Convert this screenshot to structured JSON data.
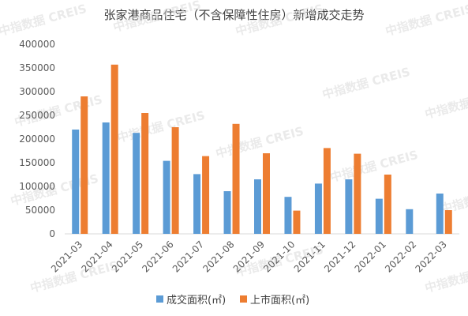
{
  "chart_data": {
    "type": "bar",
    "title": "张家港商品住宅（不含保障性住房）新增成交走势",
    "categories": [
      "2021-03",
      "2021-04",
      "2021-05",
      "2021-06",
      "2021-07",
      "2021-08",
      "2021-09",
      "2021-10",
      "2021-11",
      "2021-12",
      "2022-01",
      "2022-02",
      "2022-03"
    ],
    "series": [
      {
        "name": "成交面积(㎡)",
        "color": "#5b9bd5",
        "values": [
          220000,
          235000,
          213000,
          154000,
          126000,
          90000,
          115000,
          78000,
          106000,
          115000,
          74000,
          52000,
          85000
        ]
      },
      {
        "name": "上市面积(㎡)",
        "color": "#ed7d31",
        "values": [
          290000,
          357000,
          255000,
          225000,
          164000,
          232000,
          170000,
          49000,
          181000,
          169000,
          125000,
          0,
          50000
        ]
      }
    ],
    "ylim": [
      0,
      400000
    ],
    "yticks": [
      0,
      50000,
      100000,
      150000,
      200000,
      250000,
      300000,
      350000,
      400000
    ],
    "grid": false,
    "legend_position": "bottom"
  },
  "watermark": "中指数据 CREIS"
}
